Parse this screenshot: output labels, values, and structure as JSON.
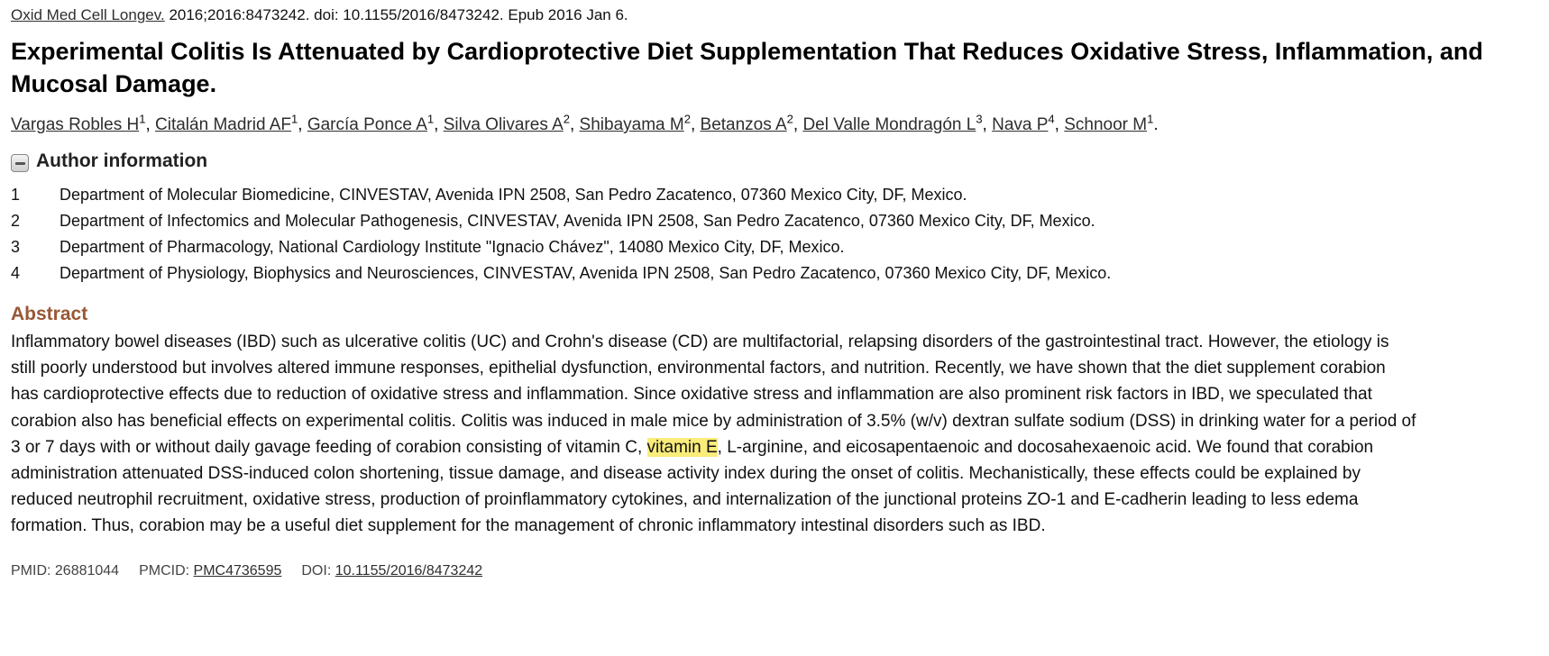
{
  "citation": {
    "journal": "Oxid Med Cell Longev.",
    "details": " 2016;2016:8473242. doi: 10.1155/2016/8473242. Epub 2016 Jan 6."
  },
  "title": "Experimental Colitis Is Attenuated by Cardioprotective Diet Supplementation That Reduces Oxidative Stress, Inflammation, and Mucosal Damage.",
  "authors": [
    {
      "name": "Vargas Robles H",
      "sup": "1"
    },
    {
      "name": "Citalán Madrid AF",
      "sup": "1"
    },
    {
      "name": "García Ponce A",
      "sup": "1"
    },
    {
      "name": "Silva Olivares A",
      "sup": "2"
    },
    {
      "name": "Shibayama M",
      "sup": "2"
    },
    {
      "name": "Betanzos A",
      "sup": "2"
    },
    {
      "name": "Del Valle Mondragón L",
      "sup": "3"
    },
    {
      "name": "Nava P",
      "sup": "4"
    },
    {
      "name": "Schnoor M",
      "sup": "1"
    }
  ],
  "author_info": {
    "heading": "Author information",
    "toggle_icon": "collapse-minus-icon",
    "affiliations": [
      {
        "num": "1",
        "text": "Department of Molecular Biomedicine, CINVESTAV, Avenida IPN 2508, San Pedro Zacatenco, 07360 Mexico City, DF, Mexico."
      },
      {
        "num": "2",
        "text": "Department of Infectomics and Molecular Pathogenesis, CINVESTAV, Avenida IPN 2508, San Pedro Zacatenco, 07360 Mexico City, DF, Mexico."
      },
      {
        "num": "3",
        "text": "Department of Pharmacology, National Cardiology Institute \"Ignacio Chávez\", 14080 Mexico City, DF, Mexico."
      },
      {
        "num": "4",
        "text": "Department of Physiology, Biophysics and Neurosciences, CINVESTAV, Avenida IPN 2508, San Pedro Zacatenco, 07360 Mexico City, DF, Mexico."
      }
    ]
  },
  "abstract": {
    "heading": "Abstract",
    "text_before": "Inflammatory bowel diseases (IBD) such as ulcerative colitis (UC) and Crohn's disease (CD) are multifactorial, relapsing disorders of the gastrointestinal tract. However, the etiology is still poorly understood but involves altered immune responses, epithelial dysfunction, environmental factors, and nutrition. Recently, we have shown that the diet supplement corabion has cardioprotective effects due to reduction of oxidative stress and inflammation. Since oxidative stress and inflammation are also prominent risk factors in IBD, we speculated that corabion also has beneficial effects on experimental colitis. Colitis was induced in male mice by administration of 3.5% (w/v) dextran sulfate sodium (DSS) in drinking water for a period of 3 or 7 days with or without daily gavage feeding of corabion consisting of vitamin C, ",
    "highlight": "vitamin E",
    "text_after": ", L-arginine, and eicosapentaenoic and docosahexaenoic acid. We found that corabion administration attenuated DSS-induced colon shortening, tissue damage, and disease activity index during the onset of colitis. Mechanistically, these effects could be explained by reduced neutrophil recruitment, oxidative stress, production of proinflammatory cytokines, and internalization of the junctional proteins ZO-1 and E-cadherin leading to less edema formation. Thus, corabion may be a useful diet supplement for the management of chronic inflammatory intestinal disorders such as IBD.",
    "highlight_color": "#f9ec7a",
    "heading_color": "#985735"
  },
  "identifiers": {
    "pmid_label": "PMID: 26881044",
    "pmcid_label": "PMCID: ",
    "pmcid_value": "PMC4736595",
    "doi_label": "DOI: ",
    "doi_value": "10.1155/2016/8473242"
  }
}
